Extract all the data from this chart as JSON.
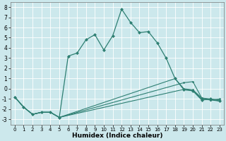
{
  "xlabel": "Humidex (Indice chaleur)",
  "xlim": [
    -0.5,
    23.5
  ],
  "ylim": [
    -3.5,
    8.5
  ],
  "xticks": [
    0,
    1,
    2,
    3,
    4,
    5,
    6,
    7,
    8,
    9,
    10,
    11,
    12,
    13,
    14,
    15,
    16,
    17,
    18,
    19,
    20,
    21,
    22,
    23
  ],
  "yticks": [
    -3,
    -2,
    -1,
    0,
    1,
    2,
    3,
    4,
    5,
    6,
    7,
    8
  ],
  "bg_color": "#cce8ec",
  "line_color": "#2e7f72",
  "grid_color": "#ffffff",
  "main_line": [
    [
      0,
      -0.8
    ],
    [
      1,
      -1.8
    ],
    [
      2,
      -2.5
    ],
    [
      3,
      -2.3
    ],
    [
      4,
      -2.3
    ],
    [
      5,
      -2.8
    ],
    [
      6,
      3.2
    ],
    [
      7,
      3.5
    ],
    [
      8,
      4.8
    ],
    [
      9,
      5.3
    ],
    [
      10,
      3.8
    ],
    [
      11,
      5.2
    ],
    [
      12,
      7.8
    ],
    [
      13,
      6.5
    ],
    [
      14,
      5.5
    ],
    [
      15,
      5.6
    ],
    [
      16,
      4.5
    ],
    [
      17,
      3.0
    ],
    [
      18,
      1.0
    ],
    [
      19,
      -0.1
    ],
    [
      20,
      -0.2
    ],
    [
      21,
      -1.1
    ],
    [
      22,
      -1.0
    ],
    [
      23,
      -1.2
    ]
  ],
  "flat_lines": [
    [
      [
        0,
        -0.8
      ],
      [
        1,
        -1.8
      ],
      [
        2,
        -2.5
      ],
      [
        3,
        -2.3
      ],
      [
        4,
        -2.3
      ],
      [
        5,
        -2.8
      ],
      [
        19,
        0.6
      ],
      [
        20,
        0.7
      ],
      [
        21,
        -0.9
      ],
      [
        22,
        -1.1
      ],
      [
        23,
        -1.0
      ]
    ],
    [
      [
        0,
        -0.8
      ],
      [
        1,
        -1.8
      ],
      [
        2,
        -2.5
      ],
      [
        3,
        -2.3
      ],
      [
        4,
        -2.3
      ],
      [
        5,
        -2.8
      ],
      [
        19,
        -0.05
      ],
      [
        20,
        -0.15
      ],
      [
        21,
        -1.0
      ],
      [
        22,
        -1.1
      ],
      [
        23,
        -1.2
      ]
    ],
    [
      [
        0,
        -0.8
      ],
      [
        1,
        -1.8
      ],
      [
        2,
        -2.5
      ],
      [
        3,
        -2.3
      ],
      [
        4,
        -2.3
      ],
      [
        5,
        -2.8
      ],
      [
        18,
        1.0
      ],
      [
        19,
        0.0
      ],
      [
        20,
        -0.1
      ],
      [
        21,
        -0.9
      ],
      [
        22,
        -1.0
      ],
      [
        23,
        -1.1
      ]
    ]
  ]
}
